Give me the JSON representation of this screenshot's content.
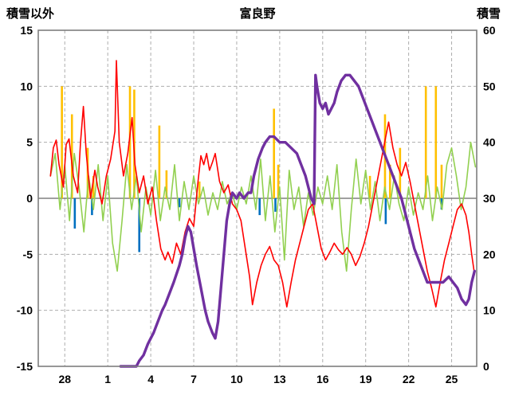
{
  "chart_data": {
    "type": "line",
    "title": "富良野",
    "left_axis": {
      "label": "積雪以外",
      "range": [
        -15,
        15
      ],
      "ticks": [
        15,
        10,
        5,
        0,
        -5,
        -10,
        -15
      ]
    },
    "right_axis": {
      "label": "積雪",
      "range": [
        0,
        60
      ],
      "ticks": [
        60,
        50,
        40,
        30,
        20,
        10,
        0
      ]
    },
    "x_axis": {
      "ticks": [
        {
          "x": 1,
          "label": "28"
        },
        {
          "x": 4,
          "label": "1"
        },
        {
          "x": 7,
          "label": "4"
        },
        {
          "x": 10,
          "label": "7"
        },
        {
          "x": 13,
          "label": "10"
        },
        {
          "x": 16,
          "label": "13"
        },
        {
          "x": 19,
          "label": "16"
        },
        {
          "x": 22,
          "label": "19"
        },
        {
          "x": 25,
          "label": "22"
        },
        {
          "x": 28,
          "label": "25"
        }
      ]
    },
    "xlim": [
      -0.85,
      29.75
    ],
    "grid": true,
    "colors": {
      "red": "#FF0000",
      "green": "#92D050",
      "orange": "#FFC000",
      "blue": "#0070C0",
      "purple": "#7030A0",
      "grid": "#ADADAD",
      "zero_line": "#808080",
      "border": "#7F7F7F"
    },
    "series": [
      {
        "name": "precip-orange-bars",
        "type": "bar",
        "axis": "left",
        "color": "#FFC000",
        "bar_width": 2.6,
        "points": [
          [
            0.8,
            10
          ],
          [
            1.5,
            7.5
          ],
          [
            2.6,
            4.5
          ],
          [
            3.0,
            2
          ],
          [
            5.55,
            10
          ],
          [
            5.85,
            9.7
          ],
          [
            7.6,
            6.5
          ],
          [
            8.1,
            2.5
          ],
          [
            10.4,
            1.5
          ],
          [
            15.6,
            8
          ],
          [
            15.9,
            3
          ],
          [
            22.3,
            2
          ],
          [
            23.35,
            7.5
          ],
          [
            23.7,
            3
          ],
          [
            24.4,
            4.5
          ],
          [
            26.2,
            10
          ],
          [
            26.9,
            10
          ],
          [
            27.3,
            3
          ]
        ]
      },
      {
        "name": "precip-blue-bars",
        "type": "bar",
        "axis": "left",
        "color": "#0070C0",
        "bar_width": 2.6,
        "points": [
          [
            1.7,
            -2.7
          ],
          [
            2.9,
            -1.5
          ],
          [
            6.2,
            -4.8
          ],
          [
            9.0,
            -0.8
          ],
          [
            14.6,
            -1.5
          ],
          [
            15.7,
            -1.2
          ],
          [
            23.4,
            -2.3
          ],
          [
            27.3,
            -1.0
          ]
        ]
      },
      {
        "name": "green-line",
        "type": "line",
        "axis": "left",
        "color": "#92D050",
        "width": 1.6,
        "x_start": 0,
        "x_step": 0.3333,
        "values": [
          2,
          4,
          -1,
          3,
          -2,
          4,
          1,
          -3,
          2,
          -1,
          3,
          -2,
          2,
          -4,
          -6.5,
          -2,
          3,
          -1,
          2,
          -3,
          1,
          -1.5,
          2.5,
          -2,
          1,
          -1,
          3,
          -2,
          1.5,
          -1,
          2,
          -0.5,
          1,
          -1.5,
          0.5,
          -1,
          1.5,
          -0.5,
          0.5,
          -1,
          1,
          -0.5,
          2,
          -1,
          3.5,
          -2,
          2,
          -3,
          1,
          -5.5,
          2.5,
          -1,
          1,
          -2.5,
          0.5,
          -1.5,
          1,
          -0.5,
          2,
          -1,
          3,
          -3,
          -6.5,
          -1,
          3.5,
          -0.5,
          2.5,
          -1,
          1.5,
          -2,
          1,
          -1,
          2,
          -0.5,
          -2,
          1,
          -1.5,
          0.5,
          -1,
          2,
          -2,
          1,
          -1,
          3,
          4.5,
          2,
          -1,
          1,
          5,
          2.8
        ]
      },
      {
        "name": "red-line",
        "type": "line",
        "axis": "left",
        "color": "#FF0000",
        "width": 1.6,
        "points": [
          [
            0,
            2
          ],
          [
            0.2,
            4.5
          ],
          [
            0.4,
            5.2
          ],
          [
            0.6,
            3
          ],
          [
            0.9,
            1
          ],
          [
            1.1,
            4.8
          ],
          [
            1.3,
            5.3
          ],
          [
            1.6,
            2
          ],
          [
            1.9,
            0.5
          ],
          [
            2.1,
            5
          ],
          [
            2.3,
            8.2
          ],
          [
            2.5,
            4
          ],
          [
            2.8,
            0
          ],
          [
            3.1,
            2.5
          ],
          [
            3.3,
            1
          ],
          [
            3.6,
            -0.5
          ],
          [
            3.9,
            2
          ],
          [
            4.2,
            3.5
          ],
          [
            4.5,
            6
          ],
          [
            4.6,
            12.3
          ],
          [
            4.8,
            5
          ],
          [
            5.1,
            2
          ],
          [
            5.4,
            4
          ],
          [
            5.7,
            7.2
          ],
          [
            5.9,
            3
          ],
          [
            6.2,
            0.5
          ],
          [
            6.5,
            2
          ],
          [
            6.8,
            -0.5
          ],
          [
            7.1,
            1
          ],
          [
            7.4,
            -2
          ],
          [
            7.7,
            -4.5
          ],
          [
            8.0,
            -5.5
          ],
          [
            8.2,
            -4.8
          ],
          [
            8.5,
            -5.8
          ],
          [
            8.8,
            -4
          ],
          [
            9.1,
            -5
          ],
          [
            9.4,
            -3
          ],
          [
            9.7,
            -1.8
          ],
          [
            10.0,
            -2.5
          ],
          [
            10.3,
            1.5
          ],
          [
            10.5,
            3.8
          ],
          [
            10.7,
            3
          ],
          [
            10.9,
            4
          ],
          [
            11.1,
            2.5
          ],
          [
            11.3,
            3.2
          ],
          [
            11.5,
            4
          ],
          [
            11.8,
            1.5
          ],
          [
            12.1,
            0.5
          ],
          [
            12.4,
            1.2
          ],
          [
            12.7,
            -0.5
          ],
          [
            13.0,
            -1
          ],
          [
            13.3,
            -2
          ],
          [
            13.6,
            -4.5
          ],
          [
            13.9,
            -7
          ],
          [
            14.1,
            -9.5
          ],
          [
            14.4,
            -7.5
          ],
          [
            14.7,
            -6
          ],
          [
            15.0,
            -5
          ],
          [
            15.3,
            -4.3
          ],
          [
            15.6,
            -5.5
          ],
          [
            15.9,
            -6
          ],
          [
            16.2,
            -7.5
          ],
          [
            16.5,
            -9.7
          ],
          [
            16.8,
            -7.5
          ],
          [
            17.1,
            -5.5
          ],
          [
            17.4,
            -4
          ],
          [
            17.7,
            -2.5
          ],
          [
            18.0,
            -1
          ],
          [
            18.3,
            -0.5
          ],
          [
            18.6,
            -2.5
          ],
          [
            18.9,
            -4.5
          ],
          [
            19.2,
            -5.5
          ],
          [
            19.5,
            -4.8
          ],
          [
            19.8,
            -4
          ],
          [
            20.1,
            -4.6
          ],
          [
            20.4,
            -5
          ],
          [
            20.7,
            -4.4
          ],
          [
            21.0,
            -5
          ],
          [
            21.3,
            -6
          ],
          [
            21.6,
            -5.2
          ],
          [
            21.9,
            -4
          ],
          [
            22.2,
            -2.5
          ],
          [
            22.5,
            -0.5
          ],
          [
            22.8,
            1.5
          ],
          [
            23.1,
            3.5
          ],
          [
            23.4,
            5.5
          ],
          [
            23.6,
            6.8
          ],
          [
            23.9,
            4.5
          ],
          [
            24.2,
            3
          ],
          [
            24.5,
            2
          ],
          [
            24.8,
            3.2
          ],
          [
            25.1,
            1.5
          ],
          [
            25.4,
            -0.5
          ],
          [
            25.7,
            -2.5
          ],
          [
            26.0,
            -4.5
          ],
          [
            26.3,
            -6.5
          ],
          [
            26.6,
            -8
          ],
          [
            26.9,
            -9.7
          ],
          [
            27.2,
            -7.5
          ],
          [
            27.5,
            -5.5
          ],
          [
            27.8,
            -4
          ],
          [
            28.1,
            -2.5
          ],
          [
            28.4,
            -1
          ],
          [
            28.7,
            -0.5
          ],
          [
            29.0,
            -1.5
          ],
          [
            29.2,
            -3
          ],
          [
            29.4,
            -5
          ],
          [
            29.6,
            -6.8
          ]
        ]
      },
      {
        "name": "snow-depth-line",
        "type": "line",
        "axis": "right",
        "color": "#7030A0",
        "width": 3.4,
        "points": [
          [
            4.9,
            0
          ],
          [
            5.5,
            0
          ],
          [
            6.0,
            0
          ],
          [
            6.2,
            1
          ],
          [
            6.5,
            2
          ],
          [
            6.8,
            4
          ],
          [
            7.0,
            5
          ],
          [
            7.2,
            6
          ],
          [
            7.5,
            8
          ],
          [
            7.8,
            10
          ],
          [
            8.0,
            11
          ],
          [
            8.3,
            13
          ],
          [
            8.6,
            15
          ],
          [
            9.0,
            18
          ],
          [
            9.2,
            20
          ],
          [
            9.4,
            23
          ],
          [
            9.6,
            25
          ],
          [
            9.8,
            24
          ],
          [
            10.0,
            21
          ],
          [
            10.2,
            18
          ],
          [
            10.5,
            14
          ],
          [
            10.8,
            10
          ],
          [
            11.0,
            8
          ],
          [
            11.3,
            6
          ],
          [
            11.5,
            5
          ],
          [
            11.7,
            8
          ],
          [
            11.9,
            14
          ],
          [
            12.1,
            20
          ],
          [
            12.3,
            26
          ],
          [
            12.5,
            29
          ],
          [
            12.7,
            31
          ],
          [
            13.0,
            30
          ],
          [
            13.2,
            31
          ],
          [
            13.5,
            30
          ],
          [
            13.8,
            31
          ],
          [
            14.0,
            31
          ],
          [
            14.2,
            34
          ],
          [
            14.5,
            37
          ],
          [
            14.8,
            39
          ],
          [
            15.0,
            40
          ],
          [
            15.3,
            41
          ],
          [
            15.6,
            41
          ],
          [
            16.0,
            40
          ],
          [
            16.4,
            40
          ],
          [
            16.8,
            39
          ],
          [
            17.2,
            38
          ],
          [
            17.5,
            36
          ],
          [
            17.8,
            34
          ],
          [
            18.0,
            32
          ],
          [
            18.2,
            30
          ],
          [
            18.4,
            29
          ],
          [
            18.5,
            52
          ],
          [
            18.6,
            50
          ],
          [
            18.8,
            47
          ],
          [
            19.0,
            46
          ],
          [
            19.2,
            47
          ],
          [
            19.4,
            45
          ],
          [
            19.6,
            46
          ],
          [
            19.8,
            47
          ],
          [
            20.0,
            49
          ],
          [
            20.3,
            51
          ],
          [
            20.6,
            52
          ],
          [
            20.9,
            52
          ],
          [
            21.2,
            51
          ],
          [
            21.5,
            50
          ],
          [
            21.8,
            48
          ],
          [
            22.1,
            46
          ],
          [
            22.4,
            44
          ],
          [
            22.7,
            42
          ],
          [
            23.0,
            40
          ],
          [
            23.3,
            38
          ],
          [
            23.6,
            36
          ],
          [
            23.9,
            34
          ],
          [
            24.2,
            32
          ],
          [
            24.5,
            30
          ],
          [
            24.8,
            27
          ],
          [
            25.1,
            24
          ],
          [
            25.4,
            21
          ],
          [
            25.7,
            19
          ],
          [
            26.0,
            17
          ],
          [
            26.3,
            15
          ],
          [
            26.6,
            15
          ],
          [
            27.0,
            15
          ],
          [
            27.4,
            15
          ],
          [
            27.8,
            16
          ],
          [
            28.1,
            15
          ],
          [
            28.4,
            14
          ],
          [
            28.7,
            12
          ],
          [
            29.0,
            11
          ],
          [
            29.2,
            12
          ],
          [
            29.4,
            15
          ],
          [
            29.6,
            17
          ]
        ]
      }
    ]
  }
}
